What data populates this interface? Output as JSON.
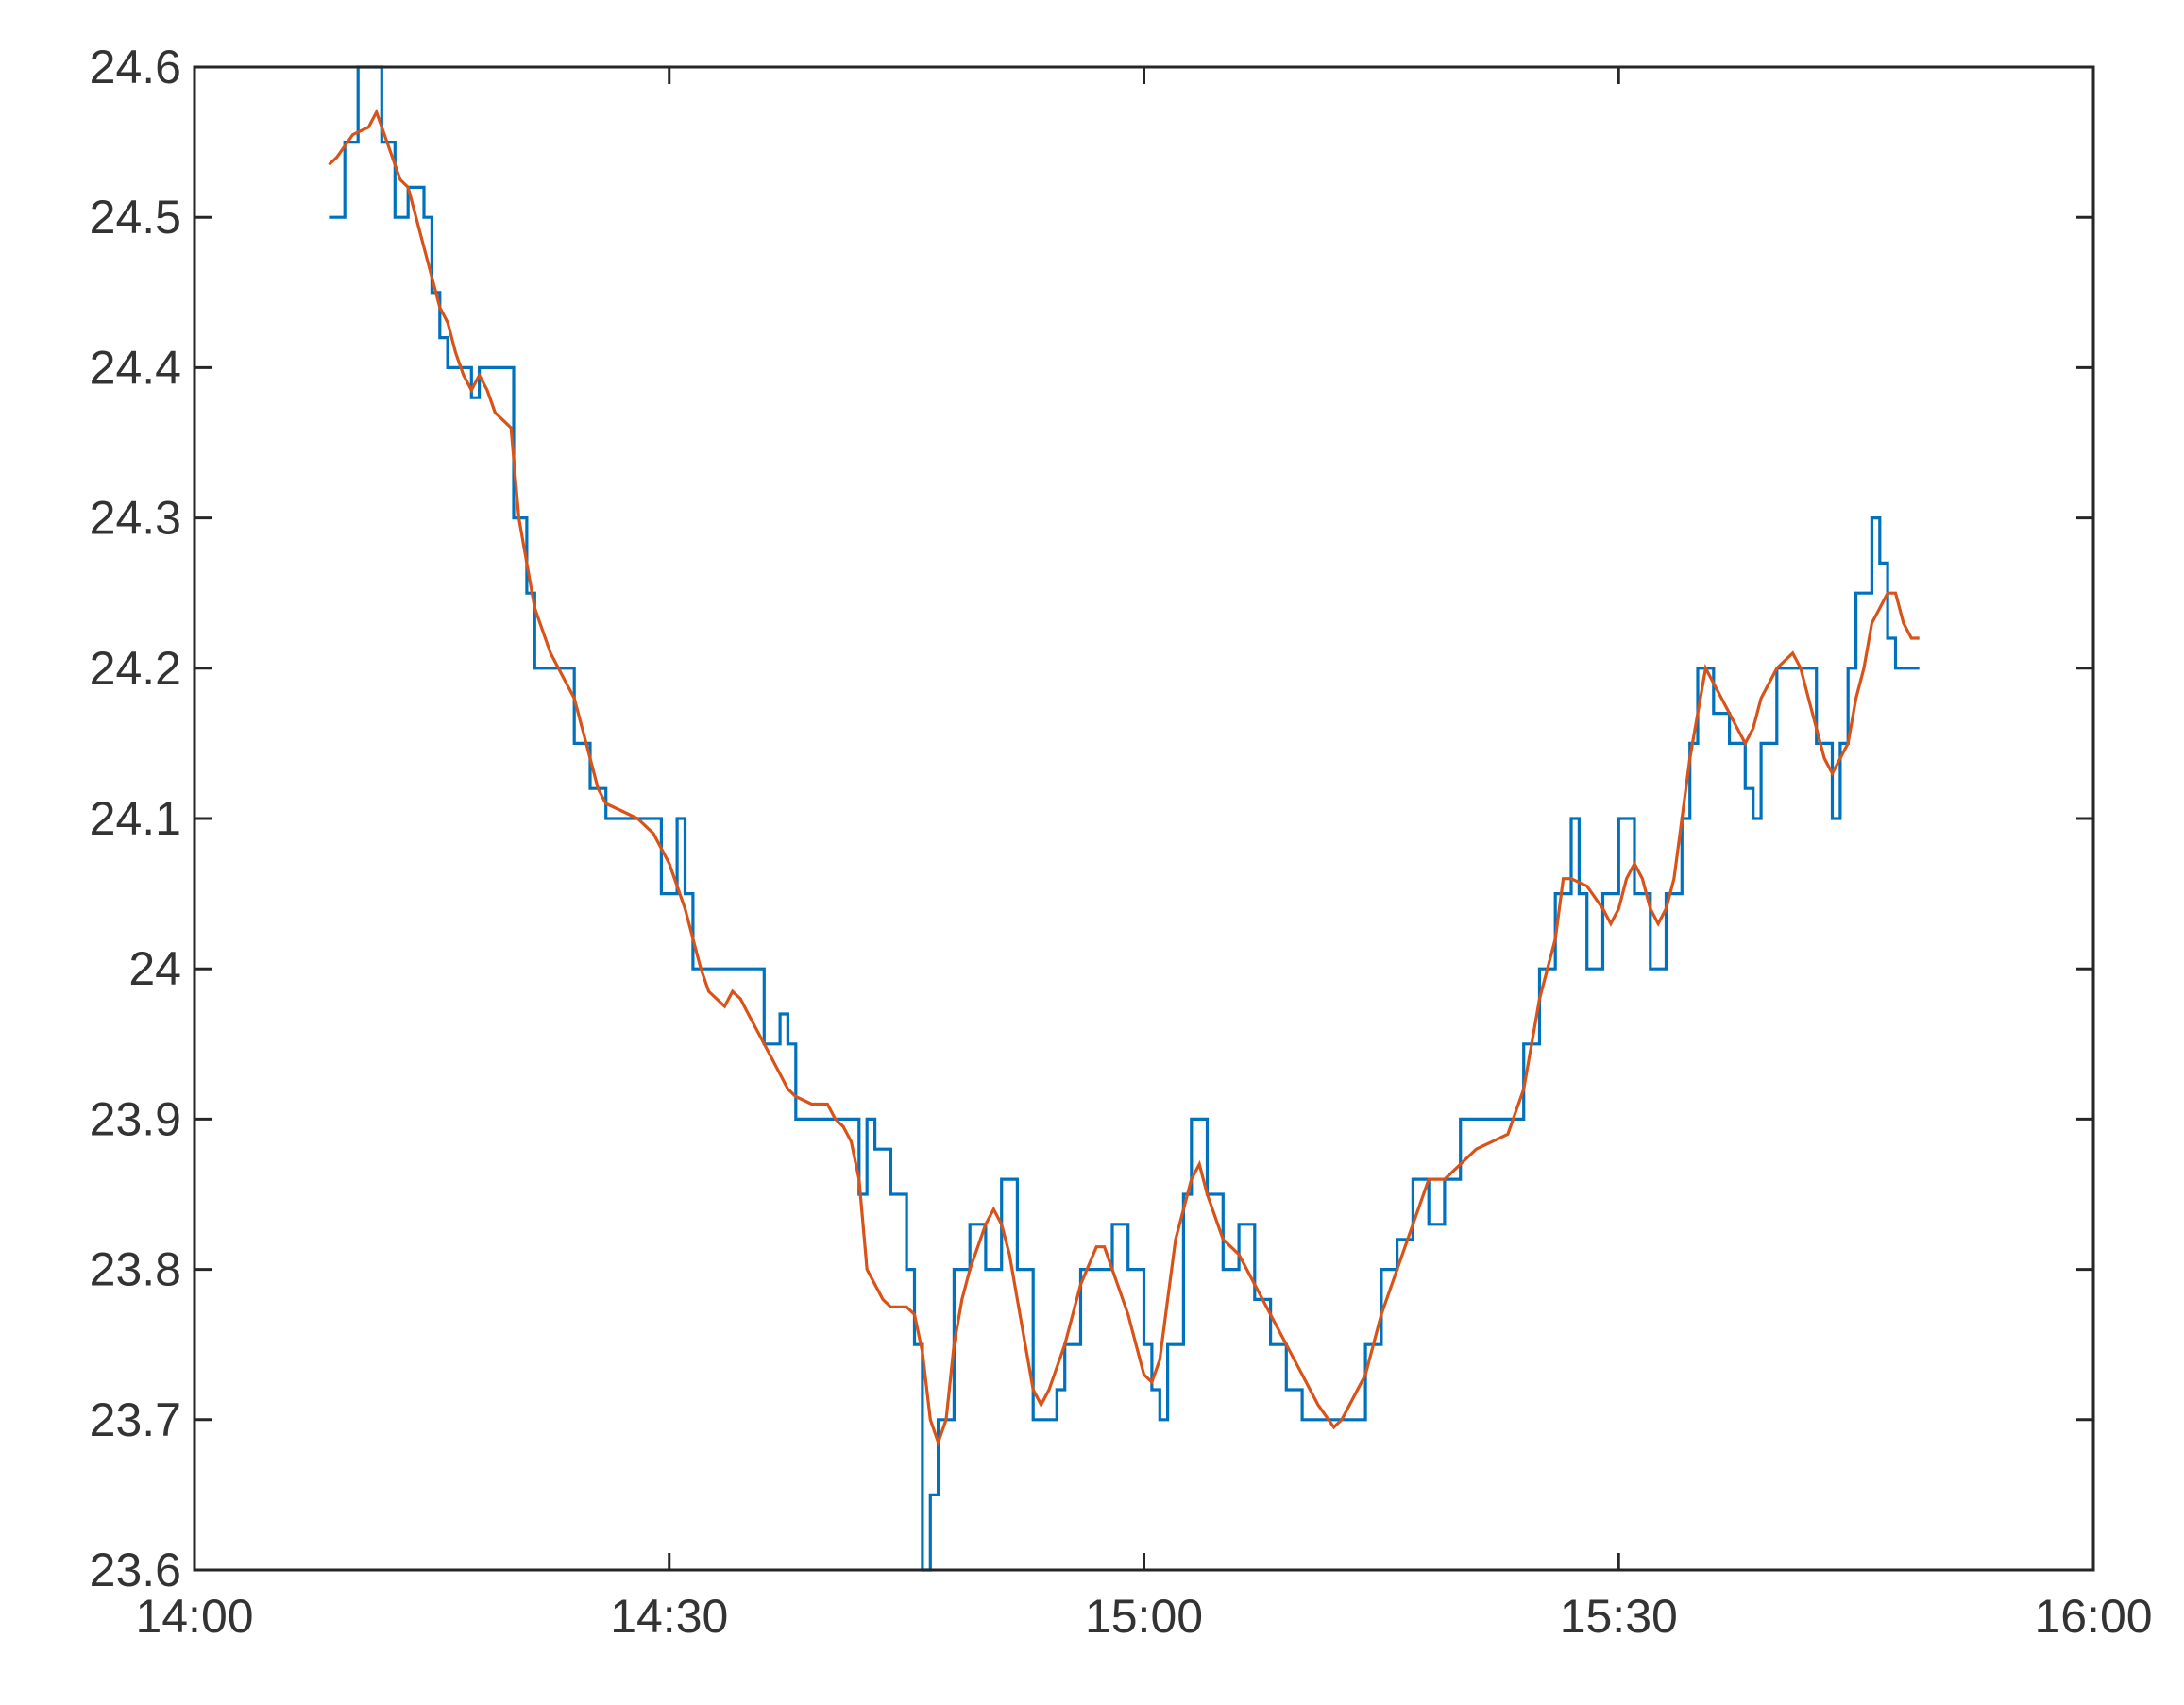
{
  "chart_data": {
    "type": "line",
    "title": "",
    "xlabel": "",
    "ylabel": "",
    "grid": false,
    "legend": "none",
    "xlim": [
      "14:00",
      "16:00"
    ],
    "ylim": [
      23.6,
      24.6
    ],
    "x_ticks": [
      "14:00",
      "14:30",
      "15:00",
      "15:30",
      "16:00"
    ],
    "y_ticks": [
      "23.6",
      "23.7",
      "23.8",
      "23.9",
      "24",
      "24.1",
      "24.2",
      "24.3",
      "24.4",
      "24.5",
      "24.6"
    ],
    "series": [
      {
        "color": "#0072BD",
        "step": true,
        "points": [
          [
            "14:08:30",
            24.5
          ],
          [
            "14:09:30",
            24.55
          ],
          [
            "14:10:20",
            24.6
          ],
          [
            "14:11:50",
            24.55
          ],
          [
            "14:12:20",
            24.55
          ],
          [
            "14:12:40",
            24.5
          ],
          [
            "14:13:30",
            24.52
          ],
          [
            "14:14:30",
            24.5
          ],
          [
            "14:15:00",
            24.45
          ],
          [
            "14:15:30",
            24.42
          ],
          [
            "14:16:00",
            24.4
          ],
          [
            "14:17:00",
            24.4
          ],
          [
            "14:17:30",
            24.38
          ],
          [
            "14:18:00",
            24.4
          ],
          [
            "14:19:30",
            24.4
          ],
          [
            "14:20:10",
            24.3
          ],
          [
            "14:21:00",
            24.25
          ],
          [
            "14:21:30",
            24.2
          ],
          [
            "14:22:30",
            24.2
          ],
          [
            "14:23:10",
            24.2
          ],
          [
            "14:24:00",
            24.15
          ],
          [
            "14:25:00",
            24.12
          ],
          [
            "14:26:00",
            24.1
          ],
          [
            "14:27:00",
            24.1
          ],
          [
            "14:28:00",
            24.1
          ],
          [
            "14:29:00",
            24.1
          ],
          [
            "14:29:30",
            24.05
          ],
          [
            "14:30:30",
            24.1
          ],
          [
            "14:31:00",
            24.05
          ],
          [
            "14:31:30",
            24.0
          ],
          [
            "14:33:00",
            24.0
          ],
          [
            "14:35:00",
            24.0
          ],
          [
            "14:36:00",
            23.95
          ],
          [
            "14:37:00",
            23.97
          ],
          [
            "14:37:30",
            23.95
          ],
          [
            "14:38:00",
            23.9
          ],
          [
            "14:40:00",
            23.9
          ],
          [
            "14:41:30",
            23.9
          ],
          [
            "14:42:00",
            23.85
          ],
          [
            "14:42:30",
            23.9
          ],
          [
            "14:43:00",
            23.88
          ],
          [
            "14:44:00",
            23.85
          ],
          [
            "14:45:00",
            23.8
          ],
          [
            "14:45:30",
            23.75
          ],
          [
            "14:46:00",
            23.6
          ],
          [
            "14:46:30",
            23.65
          ],
          [
            "14:47:00",
            23.7
          ],
          [
            "14:48:00",
            23.8
          ],
          [
            "14:49:00",
            23.83
          ],
          [
            "14:50:00",
            23.8
          ],
          [
            "14:51:00",
            23.86
          ],
          [
            "14:52:00",
            23.8
          ],
          [
            "14:53:00",
            23.7
          ],
          [
            "14:54:30",
            23.72
          ],
          [
            "14:55:00",
            23.75
          ],
          [
            "14:56:00",
            23.8
          ],
          [
            "14:57:30",
            23.8
          ],
          [
            "14:58:00",
            23.83
          ],
          [
            "14:59:00",
            23.8
          ],
          [
            "15:00:00",
            23.75
          ],
          [
            "15:00:30",
            23.72
          ],
          [
            "15:01:00",
            23.7
          ],
          [
            "15:01:30",
            23.75
          ],
          [
            "15:02:30",
            23.85
          ],
          [
            "15:03:00",
            23.9
          ],
          [
            "15:04:00",
            23.85
          ],
          [
            "15:05:00",
            23.8
          ],
          [
            "15:06:00",
            23.83
          ],
          [
            "15:07:00",
            23.78
          ],
          [
            "15:08:00",
            23.75
          ],
          [
            "15:09:00",
            23.72
          ],
          [
            "15:10:00",
            23.7
          ],
          [
            "15:13:00",
            23.7
          ],
          [
            "15:14:00",
            23.75
          ],
          [
            "15:15:00",
            23.8
          ],
          [
            "15:16:00",
            23.82
          ],
          [
            "15:17:00",
            23.86
          ],
          [
            "15:18:00",
            23.83
          ],
          [
            "15:19:00",
            23.86
          ],
          [
            "15:20:00",
            23.9
          ],
          [
            "15:23:00",
            23.9
          ],
          [
            "15:24:00",
            23.95
          ],
          [
            "15:25:00",
            24.0
          ],
          [
            "15:26:00",
            24.05
          ],
          [
            "15:27:00",
            24.1
          ],
          [
            "15:27:30",
            24.05
          ],
          [
            "15:28:00",
            24.0
          ],
          [
            "15:29:00",
            24.05
          ],
          [
            "15:30:00",
            24.1
          ],
          [
            "15:31:00",
            24.05
          ],
          [
            "15:32:00",
            24.0
          ],
          [
            "15:33:00",
            24.05
          ],
          [
            "15:34:00",
            24.1
          ],
          [
            "15:34:30",
            24.15
          ],
          [
            "15:35:00",
            24.2
          ],
          [
            "15:36:00",
            24.17
          ],
          [
            "15:37:00",
            24.15
          ],
          [
            "15:38:00",
            24.12
          ],
          [
            "15:38:30",
            24.1
          ],
          [
            "15:39:00",
            24.15
          ],
          [
            "15:40:00",
            24.2
          ],
          [
            "15:41:00",
            24.2
          ],
          [
            "15:42:00",
            24.2
          ],
          [
            "15:42:30",
            24.15
          ],
          [
            "15:43:30",
            24.1
          ],
          [
            "15:44:00",
            24.15
          ],
          [
            "15:44:30",
            24.2
          ],
          [
            "15:45:00",
            24.25
          ],
          [
            "15:46:00",
            24.3
          ],
          [
            "15:46:30",
            24.27
          ],
          [
            "15:47:00",
            24.22
          ],
          [
            "15:47:30",
            24.2
          ],
          [
            "15:49:00",
            24.2
          ]
        ]
      },
      {
        "color": "#D95319",
        "step": false,
        "points": [
          [
            "14:08:30",
            24.535
          ],
          [
            "14:09:00",
            24.54
          ],
          [
            "14:10:00",
            24.555
          ],
          [
            "14:11:00",
            24.56
          ],
          [
            "14:11:30",
            24.57
          ],
          [
            "14:12:00",
            24.555
          ],
          [
            "14:12:30",
            24.54
          ],
          [
            "14:13:00",
            24.525
          ],
          [
            "14:13:30",
            24.52
          ],
          [
            "14:14:00",
            24.5
          ],
          [
            "14:14:30",
            24.48
          ],
          [
            "14:15:00",
            24.46
          ],
          [
            "14:15:30",
            24.44
          ],
          [
            "14:16:00",
            24.43
          ],
          [
            "14:16:30",
            24.41
          ],
          [
            "14:17:00",
            24.395
          ],
          [
            "14:17:30",
            24.385
          ],
          [
            "14:18:00",
            24.395
          ],
          [
            "14:18:30",
            24.385
          ],
          [
            "14:19:00",
            24.37
          ],
          [
            "14:19:30",
            24.365
          ],
          [
            "14:20:00",
            24.36
          ],
          [
            "14:20:30",
            24.3
          ],
          [
            "14:21:00",
            24.27
          ],
          [
            "14:21:30",
            24.24
          ],
          [
            "14:22:30",
            24.21
          ],
          [
            "14:23:00",
            24.2
          ],
          [
            "14:23:30",
            24.19
          ],
          [
            "14:24:00",
            24.18
          ],
          [
            "14:24:30",
            24.16
          ],
          [
            "14:25:00",
            24.14
          ],
          [
            "14:25:30",
            24.12
          ],
          [
            "14:26:00",
            24.11
          ],
          [
            "14:27:00",
            24.105
          ],
          [
            "14:28:00",
            24.1
          ],
          [
            "14:29:00",
            24.09
          ],
          [
            "14:29:30",
            24.08
          ],
          [
            "14:30:00",
            24.07
          ],
          [
            "14:31:00",
            24.04
          ],
          [
            "14:31:30",
            24.02
          ],
          [
            "14:32:00",
            24.0
          ],
          [
            "14:32:30",
            23.985
          ],
          [
            "14:33:30",
            23.975
          ],
          [
            "14:34:00",
            23.985
          ],
          [
            "14:34:30",
            23.98
          ],
          [
            "14:35:00",
            23.97
          ],
          [
            "14:35:30",
            23.96
          ],
          [
            "14:36:00",
            23.95
          ],
          [
            "14:37:00",
            23.93
          ],
          [
            "14:37:30",
            23.92
          ],
          [
            "14:38:00",
            23.915
          ],
          [
            "14:39:00",
            23.91
          ],
          [
            "14:40:00",
            23.91
          ],
          [
            "14:40:30",
            23.9
          ],
          [
            "14:41:00",
            23.895
          ],
          [
            "14:41:30",
            23.885
          ],
          [
            "14:42:00",
            23.86
          ],
          [
            "14:42:30",
            23.8
          ],
          [
            "14:43:00",
            23.79
          ],
          [
            "14:43:30",
            23.78
          ],
          [
            "14:44:00",
            23.775
          ],
          [
            "14:45:00",
            23.775
          ],
          [
            "14:45:30",
            23.77
          ],
          [
            "14:46:00",
            23.745
          ],
          [
            "14:46:30",
            23.7
          ],
          [
            "14:47:00",
            23.685
          ],
          [
            "14:47:30",
            23.7
          ],
          [
            "14:48:00",
            23.75
          ],
          [
            "14:48:30",
            23.78
          ],
          [
            "14:49:00",
            23.8
          ],
          [
            "14:50:00",
            23.83
          ],
          [
            "14:50:30",
            23.84
          ],
          [
            "14:51:00",
            23.83
          ],
          [
            "14:51:30",
            23.81
          ],
          [
            "14:52:00",
            23.78
          ],
          [
            "14:52:30",
            23.75
          ],
          [
            "14:53:00",
            23.72
          ],
          [
            "14:53:30",
            23.71
          ],
          [
            "14:54:00",
            23.72
          ],
          [
            "14:55:00",
            23.75
          ],
          [
            "14:56:00",
            23.79
          ],
          [
            "14:57:00",
            23.815
          ],
          [
            "14:57:30",
            23.815
          ],
          [
            "14:58:00",
            23.8
          ],
          [
            "14:59:00",
            23.77
          ],
          [
            "15:00:00",
            23.73
          ],
          [
            "15:00:30",
            23.725
          ],
          [
            "15:01:00",
            23.74
          ],
          [
            "15:01:30",
            23.78
          ],
          [
            "15:02:00",
            23.82
          ],
          [
            "15:03:00",
            23.86
          ],
          [
            "15:03:30",
            23.87
          ],
          [
            "15:04:00",
            23.85
          ],
          [
            "15:05:00",
            23.82
          ],
          [
            "15:06:00",
            23.81
          ],
          [
            "15:07:00",
            23.79
          ],
          [
            "15:08:00",
            23.77
          ],
          [
            "15:09:00",
            23.75
          ],
          [
            "15:10:00",
            23.73
          ],
          [
            "15:11:00",
            23.71
          ],
          [
            "15:12:00",
            23.695
          ],
          [
            "15:12:30",
            23.7
          ],
          [
            "15:13:00",
            23.71
          ],
          [
            "15:14:00",
            23.73
          ],
          [
            "15:15:00",
            23.77
          ],
          [
            "15:16:00",
            23.8
          ],
          [
            "15:17:00",
            23.83
          ],
          [
            "15:18:00",
            23.86
          ],
          [
            "15:19:00",
            23.86
          ],
          [
            "15:20:00",
            23.87
          ],
          [
            "15:21:00",
            23.88
          ],
          [
            "15:22:00",
            23.885
          ],
          [
            "15:23:00",
            23.89
          ],
          [
            "15:24:00",
            23.92
          ],
          [
            "15:24:30",
            23.95
          ],
          [
            "15:25:00",
            23.98
          ],
          [
            "15:26:00",
            24.02
          ],
          [
            "15:26:30",
            24.06
          ],
          [
            "15:27:00",
            24.06
          ],
          [
            "15:28:00",
            24.055
          ],
          [
            "15:29:00",
            24.04
          ],
          [
            "15:29:30",
            24.03
          ],
          [
            "15:30:00",
            24.04
          ],
          [
            "15:30:30",
            24.06
          ],
          [
            "15:31:00",
            24.07
          ],
          [
            "15:31:30",
            24.06
          ],
          [
            "15:32:00",
            24.04
          ],
          [
            "15:32:30",
            24.03
          ],
          [
            "15:33:00",
            24.04
          ],
          [
            "15:33:30",
            24.06
          ],
          [
            "15:34:00",
            24.1
          ],
          [
            "15:34:30",
            24.14
          ],
          [
            "15:35:00",
            24.17
          ],
          [
            "15:35:30",
            24.2
          ],
          [
            "15:36:00",
            24.19
          ],
          [
            "15:36:30",
            24.18
          ],
          [
            "15:37:00",
            24.17
          ],
          [
            "15:37:30",
            24.16
          ],
          [
            "15:38:00",
            24.15
          ],
          [
            "15:38:30",
            24.16
          ],
          [
            "15:39:00",
            24.18
          ],
          [
            "15:39:30",
            24.19
          ],
          [
            "15:40:00",
            24.2
          ],
          [
            "15:41:00",
            24.21
          ],
          [
            "15:41:30",
            24.2
          ],
          [
            "15:42:00",
            24.18
          ],
          [
            "15:42:30",
            24.16
          ],
          [
            "15:43:00",
            24.14
          ],
          [
            "15:43:30",
            24.13
          ],
          [
            "15:44:00",
            24.14
          ],
          [
            "15:44:30",
            24.15
          ],
          [
            "15:45:00",
            24.18
          ],
          [
            "15:45:30",
            24.2
          ],
          [
            "15:46:00",
            24.23
          ],
          [
            "15:46:30",
            24.24
          ],
          [
            "15:47:00",
            24.25
          ],
          [
            "15:47:30",
            24.25
          ],
          [
            "15:48:00",
            24.23
          ],
          [
            "15:48:30",
            24.22
          ],
          [
            "15:49:00",
            24.22
          ]
        ]
      }
    ]
  }
}
